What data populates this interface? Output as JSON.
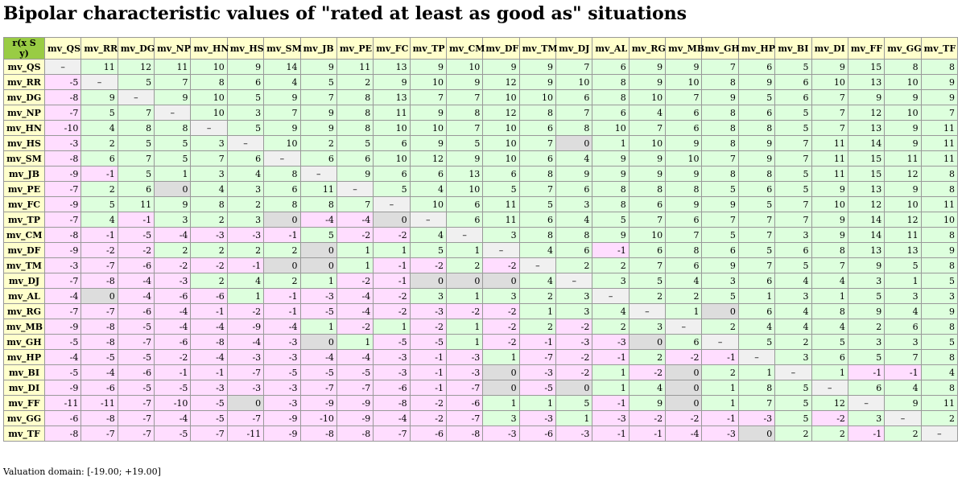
{
  "title": "Bipolar characteristic values of \"rated at least as good as\" situations",
  "table": {
    "corner": "r(x S y)",
    "columns": [
      "mv_QS",
      "mv_RR",
      "mv_DG",
      "mv_NP",
      "mv_HN",
      "mv_HS",
      "mv_SM",
      "mv_JB",
      "mv_PE",
      "mv_FC",
      "mv_TP",
      "mv_CM",
      "mv_DF",
      "mv_TM",
      "mv_DJ",
      "mv_AL",
      "mv_RG",
      "mv_MB",
      "mv_GH",
      "mv_HP",
      "mv_BI",
      "mv_DI",
      "mv_FF",
      "mv_GG",
      "mv_TF"
    ],
    "rows": [
      {
        "label": "mv_QS",
        "cells": [
          "–",
          11,
          12,
          11,
          10,
          9,
          14,
          9,
          11,
          13,
          9,
          10,
          9,
          9,
          7,
          6,
          9,
          9,
          7,
          6,
          5,
          9,
          15,
          8,
          8
        ]
      },
      {
        "label": "mv_RR",
        "cells": [
          -5,
          "–",
          5,
          7,
          8,
          6,
          4,
          5,
          2,
          9,
          10,
          9,
          12,
          9,
          10,
          8,
          9,
          10,
          8,
          9,
          6,
          10,
          13,
          10,
          9
        ]
      },
      {
        "label": "mv_DG",
        "cells": [
          -8,
          9,
          "–",
          9,
          10,
          5,
          9,
          7,
          8,
          13,
          7,
          7,
          10,
          10,
          6,
          8,
          10,
          7,
          9,
          5,
          6,
          7,
          9,
          9,
          9
        ]
      },
      {
        "label": "mv_NP",
        "cells": [
          -7,
          5,
          7,
          "–",
          10,
          3,
          7,
          9,
          8,
          11,
          9,
          8,
          12,
          8,
          7,
          6,
          4,
          6,
          8,
          6,
          5,
          7,
          12,
          10,
          7
        ]
      },
      {
        "label": "mv_HN",
        "cells": [
          -10,
          4,
          8,
          8,
          "–",
          5,
          9,
          9,
          8,
          10,
          10,
          7,
          10,
          6,
          8,
          10,
          7,
          6,
          8,
          8,
          5,
          7,
          13,
          9,
          11
        ]
      },
      {
        "label": "mv_HS",
        "cells": [
          -3,
          2,
          5,
          5,
          3,
          "–",
          10,
          2,
          5,
          6,
          9,
          5,
          10,
          7,
          0,
          1,
          10,
          9,
          8,
          9,
          7,
          11,
          14,
          9,
          11
        ]
      },
      {
        "label": "mv_SM",
        "cells": [
          -8,
          6,
          7,
          5,
          7,
          6,
          "–",
          6,
          6,
          10,
          12,
          9,
          10,
          6,
          4,
          9,
          9,
          10,
          7,
          9,
          7,
          11,
          15,
          11,
          11
        ]
      },
      {
        "label": "mv_JB",
        "cells": [
          -9,
          -1,
          5,
          1,
          3,
          4,
          8,
          "–",
          9,
          6,
          6,
          13,
          6,
          8,
          9,
          9,
          9,
          9,
          8,
          8,
          5,
          11,
          15,
          12,
          8
        ]
      },
      {
        "label": "mv_PE",
        "cells": [
          -7,
          2,
          6,
          0,
          4,
          3,
          6,
          11,
          "–",
          5,
          4,
          10,
          5,
          7,
          6,
          8,
          8,
          8,
          5,
          6,
          5,
          9,
          13,
          9,
          8
        ]
      },
      {
        "label": "mv_FC",
        "cells": [
          -9,
          5,
          11,
          9,
          8,
          2,
          8,
          8,
          7,
          "–",
          10,
          6,
          11,
          5,
          3,
          8,
          6,
          9,
          9,
          5,
          7,
          10,
          12,
          10,
          11
        ]
      },
      {
        "label": "mv_TP",
        "cells": [
          -7,
          4,
          -1,
          3,
          2,
          3,
          0,
          -4,
          -4,
          0,
          "–",
          6,
          11,
          6,
          4,
          5,
          7,
          6,
          7,
          7,
          7,
          9,
          14,
          12,
          10
        ]
      },
      {
        "label": "mv_CM",
        "cells": [
          -8,
          -1,
          -5,
          -4,
          -3,
          -3,
          -1,
          5,
          -2,
          -2,
          4,
          "–",
          3,
          8,
          8,
          9,
          10,
          7,
          5,
          7,
          3,
          9,
          14,
          11,
          8
        ]
      },
      {
        "label": "mv_DF",
        "cells": [
          -9,
          -2,
          -2,
          2,
          2,
          2,
          2,
          0,
          1,
          1,
          5,
          1,
          "–",
          4,
          6,
          -1,
          6,
          8,
          6,
          5,
          6,
          8,
          13,
          13,
          9
        ]
      },
      {
        "label": "mv_TM",
        "cells": [
          -3,
          -7,
          -6,
          -2,
          -2,
          -1,
          0,
          0,
          1,
          -1,
          -2,
          2,
          -2,
          "–",
          2,
          2,
          7,
          6,
          9,
          7,
          5,
          7,
          9,
          5,
          8
        ]
      },
      {
        "label": "mv_DJ",
        "cells": [
          -7,
          -8,
          -4,
          -3,
          2,
          4,
          2,
          1,
          -2,
          -1,
          0,
          0,
          0,
          4,
          "–",
          3,
          5,
          4,
          3,
          6,
          4,
          4,
          3,
          1,
          5
        ]
      },
      {
        "label": "mv_AL",
        "cells": [
          -4,
          0,
          -4,
          -6,
          -6,
          1,
          -1,
          -3,
          -4,
          -2,
          3,
          1,
          3,
          2,
          3,
          "–",
          2,
          2,
          5,
          1,
          3,
          1,
          5,
          3,
          3
        ]
      },
      {
        "label": "mv_RG",
        "cells": [
          -7,
          -7,
          -6,
          -4,
          -1,
          -2,
          -1,
          -5,
          -4,
          -2,
          -3,
          -2,
          -2,
          1,
          3,
          4,
          "–",
          1,
          0,
          6,
          4,
          8,
          9,
          4,
          9
        ]
      },
      {
        "label": "mv_MB",
        "cells": [
          -9,
          -8,
          -5,
          -4,
          -4,
          -9,
          -4,
          1,
          -2,
          1,
          -2,
          1,
          -2,
          2,
          -2,
          2,
          3,
          "–",
          2,
          4,
          4,
          4,
          2,
          6,
          8
        ]
      },
      {
        "label": "mv_GH",
        "cells": [
          -5,
          -8,
          -7,
          -6,
          -8,
          -4,
          -3,
          0,
          1,
          -5,
          -5,
          1,
          -2,
          -1,
          -3,
          -3,
          0,
          6,
          "–",
          5,
          2,
          5,
          3,
          3,
          5
        ]
      },
      {
        "label": "mv_HP",
        "cells": [
          -4,
          -5,
          -5,
          -2,
          -4,
          -3,
          -3,
          -4,
          -4,
          -3,
          -1,
          -3,
          1,
          -7,
          -2,
          -1,
          2,
          -2,
          -1,
          "–",
          3,
          6,
          5,
          7,
          8
        ]
      },
      {
        "label": "mv_BI",
        "cells": [
          -5,
          -4,
          -6,
          -1,
          -1,
          -7,
          -5,
          -5,
          -5,
          -3,
          -1,
          -3,
          0,
          -3,
          -2,
          1,
          -2,
          0,
          2,
          1,
          "–",
          1,
          -1,
          -1,
          4
        ]
      },
      {
        "label": "mv_DI",
        "cells": [
          -9,
          -6,
          -5,
          -5,
          -3,
          -3,
          -3,
          -7,
          -7,
          -6,
          -1,
          -7,
          0,
          -5,
          0,
          1,
          4,
          0,
          1,
          8,
          5,
          "–",
          6,
          4,
          8
        ]
      },
      {
        "label": "mv_FF",
        "cells": [
          -11,
          -11,
          -7,
          -10,
          -5,
          0,
          -3,
          -9,
          -9,
          -8,
          -2,
          -6,
          1,
          1,
          5,
          -1,
          9,
          0,
          1,
          7,
          5,
          12,
          "–",
          9,
          11
        ]
      },
      {
        "label": "mv_GG",
        "cells": [
          -6,
          -8,
          -7,
          -4,
          -5,
          -7,
          -9,
          -10,
          -9,
          -4,
          -2,
          -7,
          3,
          -3,
          1,
          -3,
          -2,
          -2,
          -1,
          -3,
          5,
          -2,
          3,
          "–",
          2
        ]
      },
      {
        "label": "mv_TF",
        "cells": [
          -8,
          -7,
          -7,
          -5,
          -7,
          -11,
          -9,
          -8,
          -8,
          -7,
          -6,
          -8,
          -3,
          -6,
          -3,
          -1,
          -1,
          -4,
          -3,
          0,
          2,
          2,
          -1,
          2,
          "–"
        ]
      }
    ]
  },
  "footer": "Valuation domain: [-19.00; +19.00]"
}
